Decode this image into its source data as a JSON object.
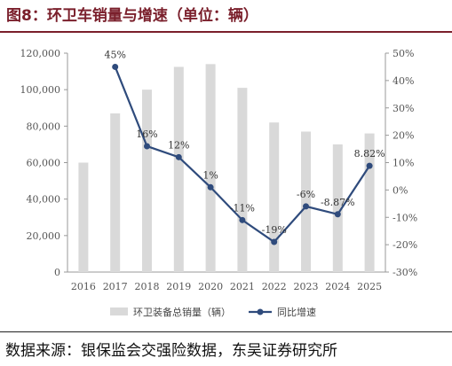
{
  "title": "图8：环卫车销量与增速（单位：辆）",
  "source": "数据来源：银保监会交强险数据，东吴证券研究所",
  "chart_data": {
    "type": "bar",
    "categories": [
      "2016",
      "2017",
      "2018",
      "2019",
      "2020",
      "2021",
      "2022",
      "2023",
      "2024",
      "2025"
    ],
    "series": [
      {
        "name": "环卫装备总销量（辆）",
        "type": "bar",
        "axis": "left",
        "color": "#d9d9d9",
        "values": [
          60000,
          87000,
          100000,
          112500,
          114000,
          101000,
          82000,
          77000,
          70000,
          76000
        ]
      },
      {
        "name": "同比增速",
        "type": "line",
        "axis": "right",
        "color": "#2f4b7c",
        "values": [
          null,
          45,
          16,
          12,
          1,
          -11,
          -19,
          -6,
          -8.87,
          8.82
        ],
        "labels": [
          "",
          "45%",
          "16%",
          "12%",
          "1%",
          "-11%",
          "-19%",
          "-6%",
          "-8.87%",
          "8.82%"
        ]
      }
    ],
    "y_left": {
      "ylim": [
        0,
        120000
      ],
      "ticks": [
        0,
        20000,
        40000,
        60000,
        80000,
        100000,
        120000
      ],
      "tick_labels": [
        "0",
        "20,000",
        "40,000",
        "60,000",
        "80,000",
        "100,000",
        "120,000"
      ]
    },
    "y_right": {
      "ylim": [
        -30,
        50
      ],
      "ticks": [
        -30,
        -20,
        -10,
        0,
        10,
        20,
        30,
        40,
        50
      ],
      "tick_labels": [
        "-30%",
        "-20%",
        "-10%",
        "0%",
        "10%",
        "20%",
        "30%",
        "40%",
        "50%"
      ]
    },
    "legend_position": "bottom",
    "grid": false
  }
}
